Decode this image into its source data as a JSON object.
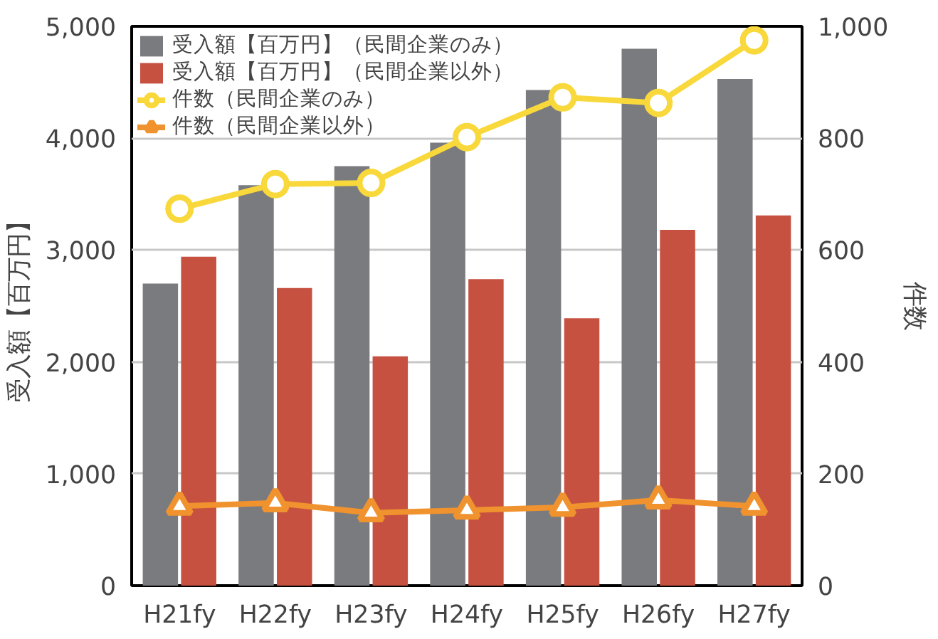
{
  "chart_data": {
    "type": "bar",
    "categories": [
      "H21fy",
      "H22fy",
      "H23fy",
      "H24fy",
      "H25fy",
      "H26fy",
      "H27fy"
    ],
    "ylabel": "受入額【百万円】",
    "y2label": "件数",
    "ylim": [
      0,
      5000
    ],
    "yticks": [
      {
        "value": 0,
        "label": "0"
      },
      {
        "value": 1000,
        "label": "1,000"
      },
      {
        "value": 2000,
        "label": "2,000"
      },
      {
        "value": 3000,
        "label": "3,000"
      },
      {
        "value": 4000,
        "label": "4,000"
      },
      {
        "value": 5000,
        "label": "5,000"
      }
    ],
    "y2lim": [
      0,
      1000
    ],
    "y2ticks": [
      0,
      200,
      400,
      600,
      800,
      {
        "value": 1000,
        "label": "1,000"
      }
    ],
    "grid": "y",
    "legend": "top left",
    "series": [
      {
        "name": "受入額【百万円】（民間企業のみ）",
        "color": "#7a7b7f",
        "values": [
          2700,
          3580,
          3750,
          3960,
          4430,
          4800,
          4530
        ]
      },
      {
        "name": "受入額【百万円】（民間企業以外）",
        "color": "#c65141",
        "values": [
          2940,
          2660,
          2050,
          2740,
          2390,
          3180,
          3310
        ]
      },
      {
        "name": "件数（民間企業のみ）",
        "type": "line",
        "axis": "y2",
        "marker": "circle",
        "color": "#f8d83a",
        "values": [
          674,
          718,
          720,
          802,
          873,
          863,
          975
        ]
      },
      {
        "name": "件数（民間企業以外）",
        "type": "line",
        "axis": "y2",
        "marker": "triangle",
        "color": "#f0922e",
        "values": [
          142,
          148,
          130,
          135,
          140,
          153,
          142
        ]
      }
    ]
  }
}
